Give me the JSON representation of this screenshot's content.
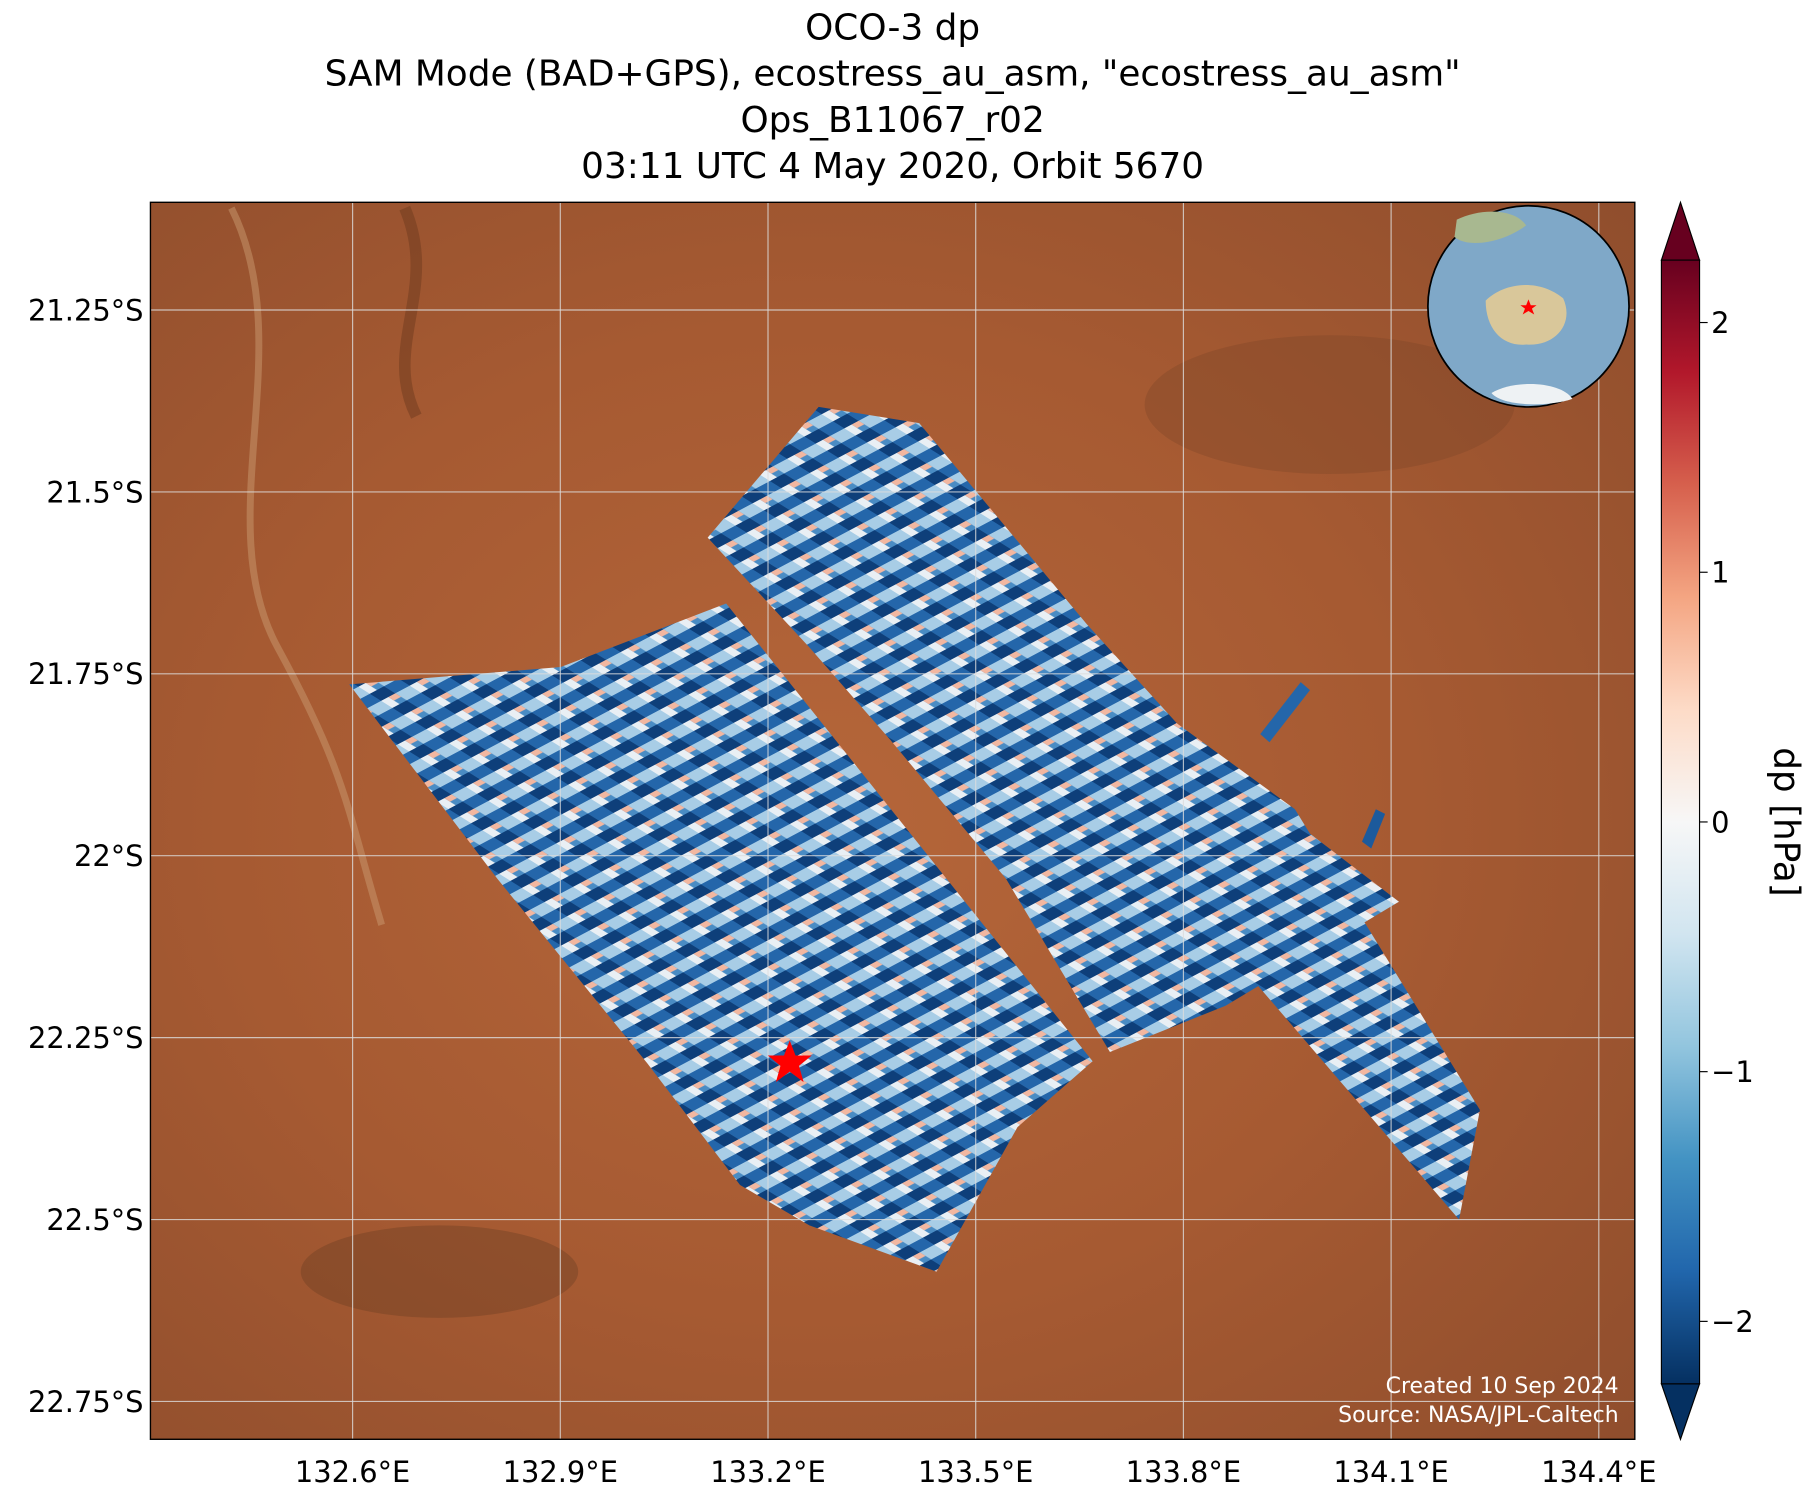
{
  "map": {
    "title": [
      "OCO-3 dp",
      "SAM Mode (BAD+GPS), ecostress_au_asm, \"ecostress_au_asm\"",
      "Ops_B11067_r02",
      "03:11 UTC 4 May 2020, Orbit 5670"
    ],
    "xlim": [
      132.308,
      134.452
    ],
    "ylim": [
      -22.802,
      -21.102
    ],
    "xticks": [
      {
        "value": 132.6,
        "label": "132.6°E"
      },
      {
        "value": 132.9,
        "label": "132.9°E"
      },
      {
        "value": 133.2,
        "label": "133.2°E"
      },
      {
        "value": 133.5,
        "label": "133.5°E"
      },
      {
        "value": 133.8,
        "label": "133.8°E"
      },
      {
        "value": 134.1,
        "label": "134.1°E"
      },
      {
        "value": 134.4,
        "label": "134.4°E"
      }
    ],
    "yticks": [
      {
        "value": -21.25,
        "label": "21.25°S"
      },
      {
        "value": -21.5,
        "label": "21.5°S"
      },
      {
        "value": -21.75,
        "label": "21.75°S"
      },
      {
        "value": -22,
        "label": "22°S"
      },
      {
        "value": -22.25,
        "label": "22.25°S"
      },
      {
        "value": -22.5,
        "label": "22.5°S"
      },
      {
        "value": -22.75,
        "label": "22.75°S"
      }
    ],
    "grid": true,
    "colorbar": {
      "label": "dp [hPa]",
      "lim": [
        -2.25,
        2.25
      ],
      "ticks": [
        {
          "value": -2,
          "label": "−2"
        },
        {
          "value": -1,
          "label": "−1"
        },
        0,
        1,
        2
      ]
    },
    "credits": [
      "Created 10 Sep 2024",
      "Source: NASA/JPL-Caltech"
    ]
  }
}
